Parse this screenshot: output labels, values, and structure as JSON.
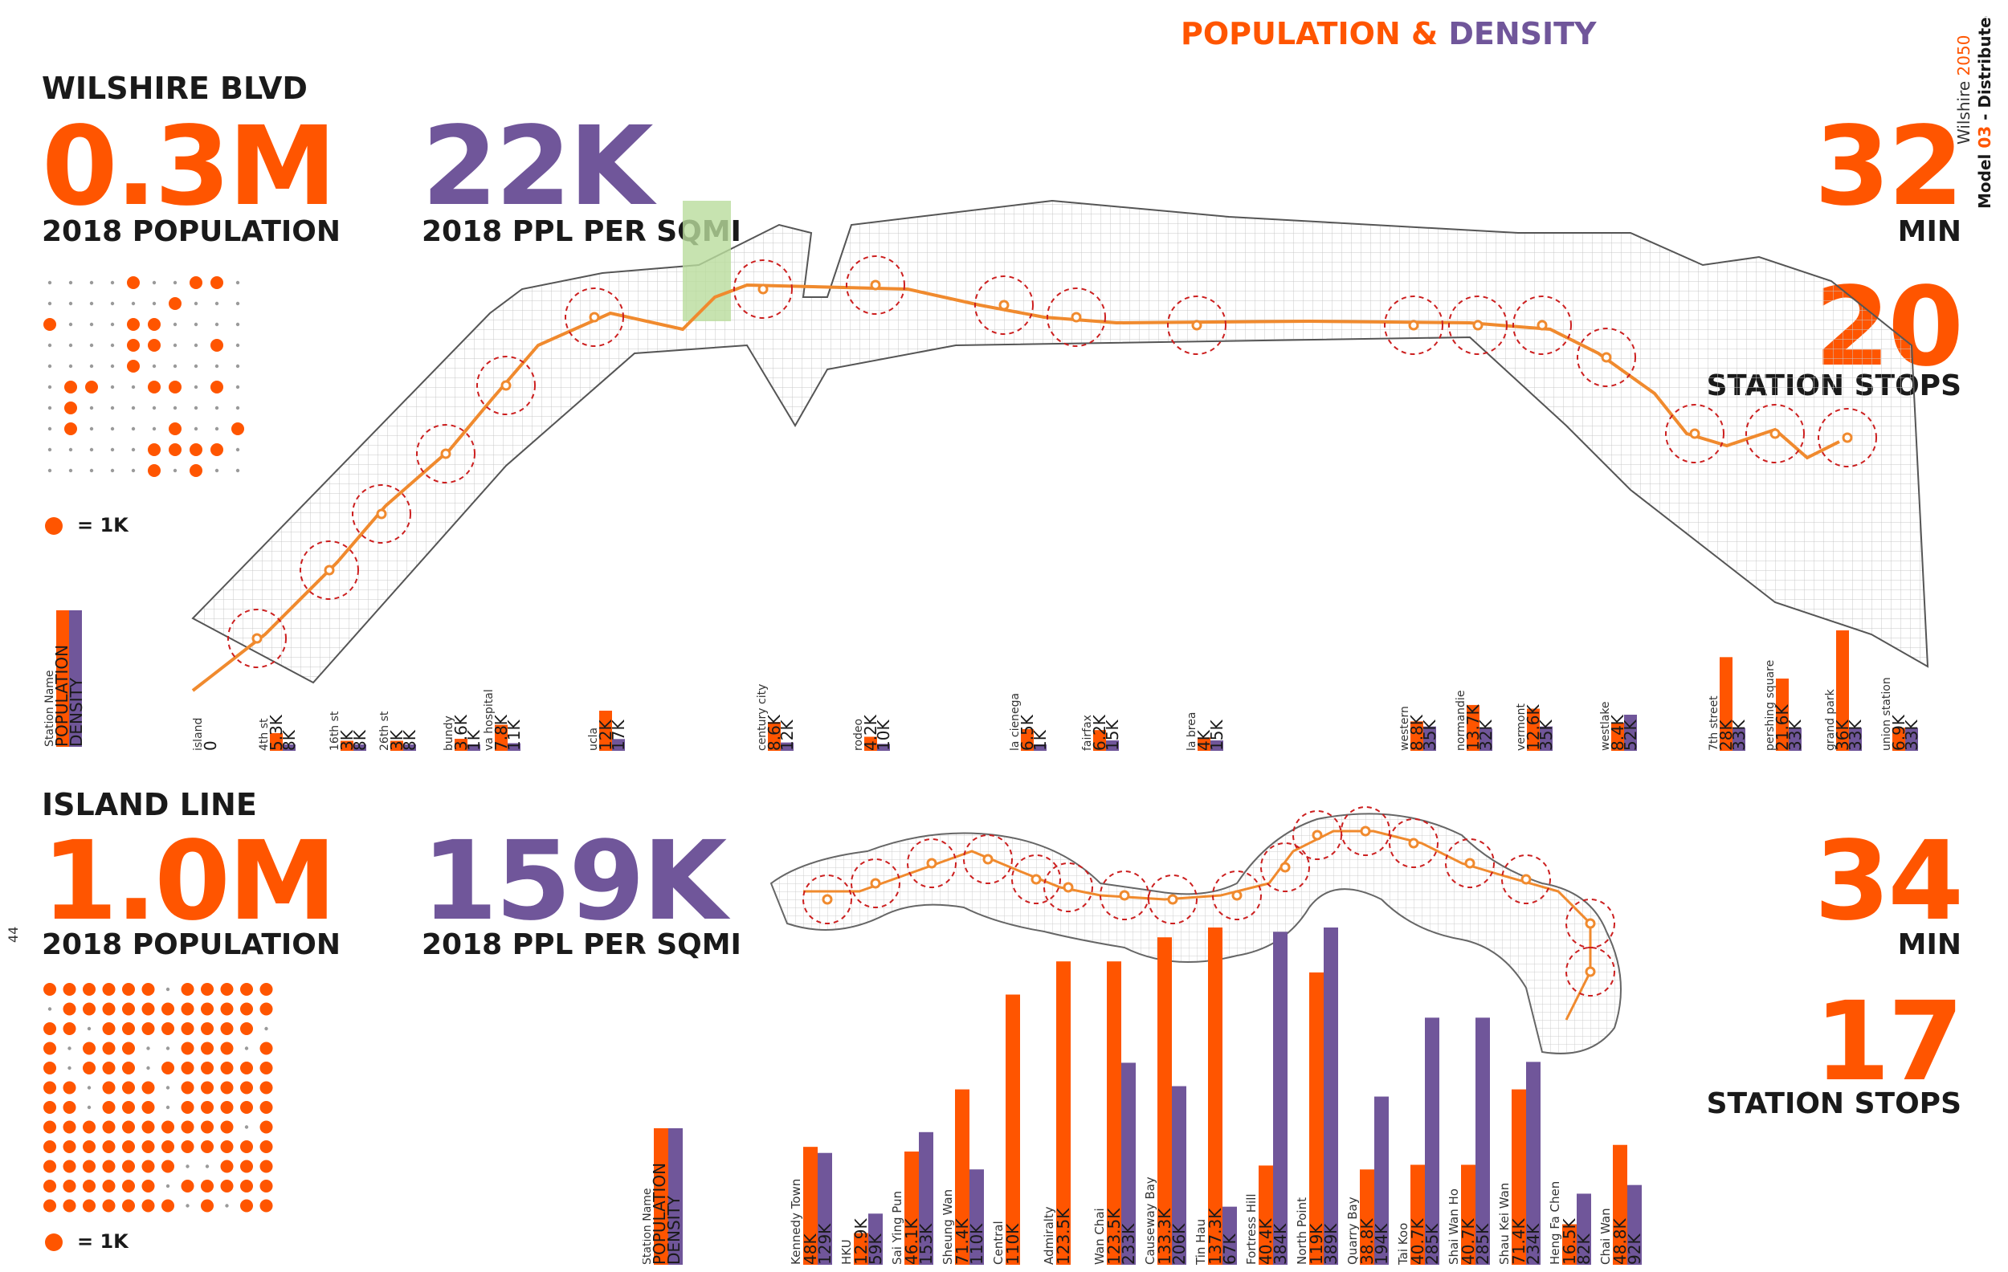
{
  "title": {
    "part1": "POPULATION",
    "amp": "&",
    "part2": "DENSITY"
  },
  "side_label": {
    "line1_a": "Wilshire ",
    "line1_b": "2050",
    "line2_a": "Model ",
    "line2_b": "03",
    "line2_c": " - Distributed"
  },
  "page_number": "44",
  "legend_labels": {
    "station_name": "Station Name",
    "population": "POPULATION",
    "density": "DENSITY"
  },
  "colors": {
    "population": "#ff5500",
    "density": "#70569a",
    "route": "#f08a2e",
    "ring": "#cc1f1f",
    "text": "#1a1a1a"
  },
  "panels": {
    "wilshire": {
      "name": "WILSHIRE BLVD",
      "population_value": "0.3M",
      "population_label": "2018 POPULATION",
      "density_value": "22K",
      "density_label": "2018 PPL PER SQMI",
      "time_value": "32",
      "time_label": "MIN",
      "stops_value": "20",
      "stops_label": "STATION STOPS",
      "dot_key": "= 1K",
      "dot_grid": {
        "rows": 10,
        "cols": 10,
        "filled_count": 26
      }
    },
    "island": {
      "name": "ISLAND LINE",
      "population_value": "1.0M",
      "population_label": "2018 POPULATION",
      "density_value": "159K",
      "density_label": "2018 PPL PER SQMI",
      "time_value": "34",
      "time_label": "MIN",
      "stops_value": "17",
      "stops_label": "STATION STOPS",
      "dot_key": "= 1K",
      "dot_grid": {
        "rows": 12,
        "cols": 12,
        "filled_count": 124
      }
    }
  },
  "chart_data": [
    {
      "type": "bar",
      "title": "WILSHIRE BLVD",
      "series": [
        {
          "name": "POPULATION",
          "color": "#ff5500",
          "values": [
            0,
            5.3,
            3,
            3,
            3.6,
            7.8,
            12,
            8.6,
            4.2,
            6.5,
            6.2,
            4,
            8.8,
            13.7,
            12.6,
            8.4,
            28,
            21.6,
            36,
            6.9
          ]
        },
        {
          "name": "DENSITY",
          "color": "#70569a",
          "values": [
            0,
            8,
            8,
            8,
            1,
            11,
            17,
            12,
            10,
            1,
            15,
            15,
            35,
            32,
            35,
            52,
            33,
            33,
            33,
            33
          ]
        }
      ],
      "categories": [
        "island",
        "4th st",
        "16th st",
        "26th st",
        "bundy",
        "va hospital",
        "ucla",
        "century city",
        "rodeo",
        "la cienega",
        "fairfax",
        "la brea",
        "western",
        "normandie",
        "vermont",
        "westlake",
        "7th street",
        "pershing square",
        "grand park",
        "union station"
      ],
      "population_labels": [
        "0",
        "5.3K",
        "3K",
        "3K",
        "3.6K",
        "7.8K",
        "12K",
        "8.6K",
        "4.2K",
        "6.5K",
        "6.2K",
        "4K",
        "8.8K",
        "13.7K",
        "12.6K",
        "8.4K",
        "28K",
        "21.6K",
        "36K",
        "6.9K"
      ],
      "density_labels": [
        "",
        "8K",
        "8K",
        "8K",
        "1K",
        "11K",
        "17K",
        "12K",
        "10K",
        "1K",
        "15K",
        "15K",
        "35K",
        "32K",
        "35K",
        "52K",
        "33K",
        "33K",
        "33K",
        "33K"
      ],
      "units": "K"
    },
    {
      "type": "bar",
      "title": "ISLAND LINE",
      "series": [
        {
          "name": "POPULATION",
          "color": "#ff5500",
          "values": [
            48,
            12.9,
            46.1,
            71.4,
            110,
            123.5,
            123.5,
            133.3,
            137.3,
            40.4,
            119,
            38.8,
            40.7,
            40.7,
            71.4,
            16.5,
            48.8
          ]
        },
        {
          "name": "DENSITY",
          "color": "#70569a",
          "values": [
            129,
            59,
            153,
            110,
            0,
            0,
            233,
            206,
            67,
            384,
            389,
            194,
            285,
            285,
            234,
            82,
            92
          ]
        }
      ],
      "categories": [
        "Kennedy Town",
        "HKU",
        "Sai Ying Pun",
        "Sheung Wan",
        "Central",
        "Admiralty",
        "Wan Chai",
        "Causeway Bay",
        "Tin Hau",
        "Fortress Hill",
        "North Point",
        "Quarry Bay",
        "Tai Koo",
        "Shai Wan Ho",
        "Shau Kei Wan",
        "Heng Fa Chen",
        "Chai Wan"
      ],
      "population_labels": [
        "48K",
        "12.9K",
        "46.1K",
        "71.4K",
        "110K",
        "123.5K",
        "123.5K",
        "133.3K",
        "137.3K",
        "40.4K",
        "119K",
        "38.8K",
        "40.7K",
        "40.7K",
        "71.4K",
        "16.5K",
        "48.8K"
      ],
      "density_labels": [
        "129K",
        "59K",
        "153K",
        "110K",
        "",
        "",
        "233K",
        "206K",
        "67K",
        "384K",
        "389K",
        "194K",
        "285K",
        "285K",
        "234K",
        "82K",
        "92K"
      ],
      "units": "K"
    }
  ]
}
